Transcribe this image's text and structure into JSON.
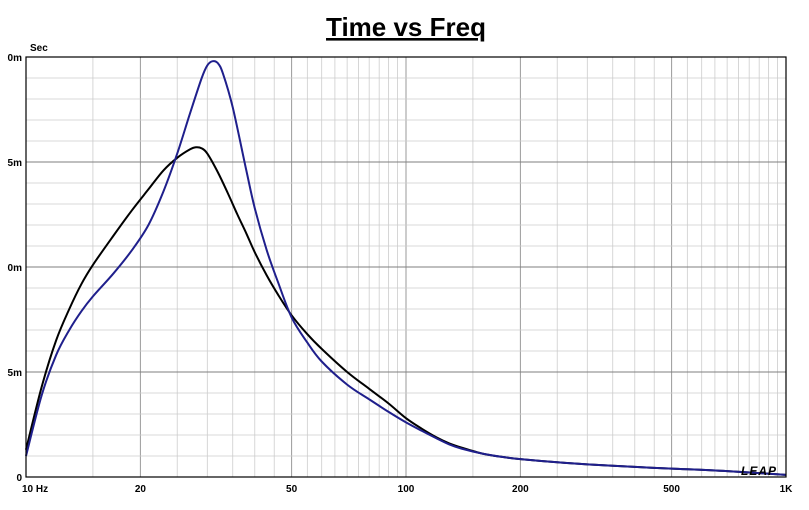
{
  "chart_data": {
    "type": "line",
    "title": "Time vs Freq",
    "ylabel_unit": "Sec",
    "x_scale": "log",
    "xlim": [
      10,
      1000
    ],
    "ylim": [
      0,
      20
    ],
    "x_tick_labels": [
      {
        "value": 10,
        "label": "10  Hz"
      },
      {
        "value": 20,
        "label": "20"
      },
      {
        "value": 50,
        "label": "50"
      },
      {
        "value": 100,
        "label": "100"
      },
      {
        "value": 200,
        "label": "200"
      },
      {
        "value": 500,
        "label": "500"
      },
      {
        "value": 1000,
        "label": "1K"
      }
    ],
    "y_tick_labels": [
      {
        "value": 0,
        "label": "0"
      },
      {
        "value": 5,
        "label": "5m"
      },
      {
        "value": 10,
        "label": "0m"
      },
      {
        "value": 15,
        "label": "5m"
      },
      {
        "value": 20,
        "label": "0m"
      }
    ],
    "grid": true,
    "series": [
      {
        "color": "#000000",
        "x": [
          10,
          11,
          12,
          13,
          14,
          15,
          17,
          19,
          21,
          23,
          25,
          27,
          28,
          29,
          30,
          32,
          34,
          36,
          38,
          40,
          43,
          46,
          50,
          55,
          60,
          70,
          80,
          90,
          100,
          110,
          120,
          130,
          140,
          160,
          180,
          200,
          250,
          300,
          400,
          500,
          700,
          1000
        ],
        "y": [
          1.3,
          4.3,
          6.5,
          8.0,
          9.2,
          10.1,
          11.5,
          12.7,
          13.7,
          14.6,
          15.2,
          15.6,
          15.7,
          15.65,
          15.4,
          14.5,
          13.5,
          12.5,
          11.6,
          10.7,
          9.6,
          8.7,
          7.7,
          6.8,
          6.1,
          5.0,
          4.2,
          3.5,
          2.8,
          2.3,
          1.9,
          1.6,
          1.4,
          1.1,
          0.95,
          0.85,
          0.7,
          0.6,
          0.48,
          0.4,
          0.28,
          0.1
        ]
      },
      {
        "color": "#1f1f8c",
        "x": [
          10,
          11,
          12,
          13,
          14,
          15,
          17,
          19,
          21,
          23,
          25,
          27,
          29,
          30,
          31,
          32,
          33,
          35,
          38,
          40,
          43,
          46,
          50,
          55,
          60,
          70,
          80,
          90,
          100,
          110,
          120,
          130,
          140,
          160,
          180,
          200,
          250,
          300,
          400,
          500,
          700,
          1000
        ],
        "y": [
          1.0,
          3.9,
          5.8,
          7.0,
          7.9,
          8.6,
          9.7,
          10.8,
          12.0,
          13.6,
          15.4,
          17.3,
          19.0,
          19.6,
          19.8,
          19.7,
          19.2,
          17.6,
          14.6,
          12.8,
          10.8,
          9.3,
          7.6,
          6.4,
          5.5,
          4.4,
          3.7,
          3.1,
          2.6,
          2.2,
          1.85,
          1.55,
          1.35,
          1.1,
          0.95,
          0.85,
          0.7,
          0.6,
          0.48,
          0.4,
          0.28,
          0.1
        ]
      }
    ],
    "logo_text": "LEAP"
  }
}
